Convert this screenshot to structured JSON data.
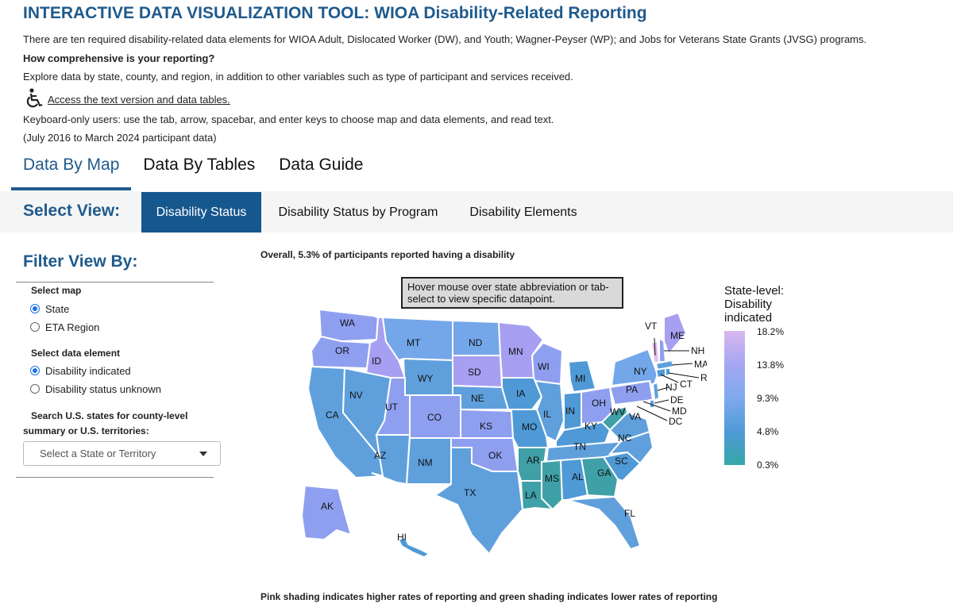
{
  "header": {
    "title": "INTERACTIVE DATA VISUALIZATION TOOL: WIOA Disability-Related Reporting",
    "intro": "There are ten required disability-related data elements for WIOA Adult, Dislocated Worker (DW), and Youth; Wagner-Peyser (WP); and Jobs for Veterans State Grants (JVSG) programs.",
    "question": "How comprehensive is your reporting?",
    "explore": "Explore data by state, county, and region, in addition to other variables such as type of participant and services received.",
    "access_link": "Access the text version and data tables.",
    "access_icon": "wheelchair-accessibility-icon",
    "keyboard_note": "Keyboard-only users: use the tab, arrow, spacebar, and enter keys to choose map and data elements, and read text.",
    "date_range": "(July 2016 to March 2024 participant data)"
  },
  "top_tabs": [
    {
      "label": "Data By Map",
      "active": true
    },
    {
      "label": "Data By Tables",
      "active": false
    },
    {
      "label": "Data Guide",
      "active": false
    }
  ],
  "view": {
    "label": "Select View:",
    "tabs": [
      {
        "label": "Disability Status",
        "active": true
      },
      {
        "label": "Disability Status by Program",
        "active": false
      },
      {
        "label": "Disability Elements",
        "active": false
      }
    ]
  },
  "filter": {
    "title": "Filter View By:",
    "map_label": "Select map",
    "map_options": [
      {
        "label": "State",
        "selected": true
      },
      {
        "label": "ETA Region",
        "selected": false
      }
    ],
    "element_label": "Select data element",
    "element_options": [
      {
        "label": "Disability indicated",
        "selected": true
      },
      {
        "label": "Disability status unknown",
        "selected": false
      }
    ],
    "search_label_1": "Search U.S. states for county-level",
    "search_label_2": "summary or U.S. territories:",
    "select_placeholder": "Select a State or Territory"
  },
  "map": {
    "heading": "Overall, 5.3% of participants reported having a disability",
    "hover_hint": "Hover mouse over state abbreviation or tab-select to view specific datapoint.",
    "caption": "Pink shading indicates higher rates of reporting and green shading indicates lower rates of reporting",
    "legend_title_1": "State-level:",
    "legend_title_2": "Disability",
    "legend_title_3": "indicated",
    "legend_ticks": [
      "18.2%",
      "13.8%",
      "9.3%",
      "4.8%",
      "0.3%"
    ],
    "legend_colors": [
      "#d8b8ee",
      "#a6a6f2",
      "#7fa9ee",
      "#4f9ad6",
      "#35a7a7"
    ],
    "states": [
      "WA",
      "OR",
      "CA",
      "ID",
      "NV",
      "MT",
      "WY",
      "UT",
      "AZ",
      "CO",
      "NM",
      "ND",
      "SD",
      "NE",
      "KS",
      "OK",
      "TX",
      "MN",
      "IA",
      "MO",
      "AR",
      "LA",
      "WI",
      "IL",
      "MI",
      "IN",
      "OH",
      "KY",
      "TN",
      "MS",
      "AL",
      "GA",
      "FL",
      "SC",
      "NC",
      "VA",
      "WV",
      "PA",
      "NY",
      "VT",
      "ME",
      "NH",
      "MA",
      "RI",
      "CT",
      "NJ",
      "DE",
      "MD",
      "DC",
      "AK",
      "HI"
    ]
  }
}
